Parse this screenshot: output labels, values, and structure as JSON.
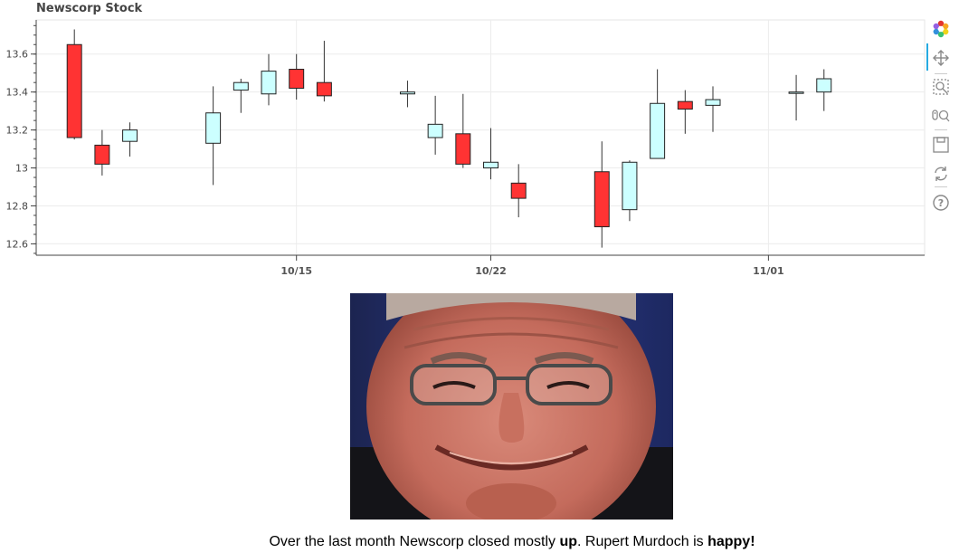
{
  "chart_data": {
    "type": "candlestick",
    "title": "Newscorp Stock",
    "ylim": [
      12.54,
      13.78
    ],
    "yticks": [
      12.6,
      12.8,
      13,
      13.2,
      13.4,
      13.6
    ],
    "ytick_labels": [
      "12.6",
      "12.8",
      "13",
      "13.2",
      "13.4",
      "13.6"
    ],
    "xlim": [
      "2018-10-05T15:00",
      "2018-11-06T15:00"
    ],
    "xticks": [
      "2018-10-15",
      "2018-10-22",
      "2018-11-01"
    ],
    "xtick_labels": [
      "10/15",
      "10/22",
      "11/01"
    ],
    "increasing_color": "#CCFFFF",
    "decreasing_color": "#FF3333",
    "candles": [
      {
        "date": "2018-10-07",
        "open": 13.65,
        "high": 13.73,
        "low": 13.15,
        "close": 13.16
      },
      {
        "date": "2018-10-08",
        "open": 13.12,
        "high": 13.2,
        "low": 12.96,
        "close": 13.02
      },
      {
        "date": "2018-10-09",
        "open": 13.14,
        "high": 13.24,
        "low": 13.06,
        "close": 13.2
      },
      {
        "date": "2018-10-12",
        "open": 13.13,
        "high": 13.43,
        "low": 12.91,
        "close": 13.29
      },
      {
        "date": "2018-10-13",
        "open": 13.41,
        "high": 13.47,
        "low": 13.29,
        "close": 13.45
      },
      {
        "date": "2018-10-14",
        "open": 13.39,
        "high": 13.6,
        "low": 13.33,
        "close": 13.51
      },
      {
        "date": "2018-10-15",
        "open": 13.52,
        "high": 13.6,
        "low": 13.36,
        "close": 13.42
      },
      {
        "date": "2018-10-16",
        "open": 13.45,
        "high": 13.67,
        "low": 13.35,
        "close": 13.38
      },
      {
        "date": "2018-10-19",
        "open": 13.39,
        "high": 13.46,
        "low": 13.32,
        "close": 13.4
      },
      {
        "date": "2018-10-20",
        "open": 13.16,
        "high": 13.38,
        "low": 13.07,
        "close": 13.23
      },
      {
        "date": "2018-10-21",
        "open": 13.18,
        "high": 13.39,
        "low": 13.0,
        "close": 13.02
      },
      {
        "date": "2018-10-22",
        "open": 13.0,
        "high": 13.21,
        "low": 12.94,
        "close": 13.03
      },
      {
        "date": "2018-10-23",
        "open": 12.92,
        "high": 13.02,
        "low": 12.74,
        "close": 12.84
      },
      {
        "date": "2018-10-26",
        "open": 12.98,
        "high": 13.14,
        "low": 12.58,
        "close": 12.69
      },
      {
        "date": "2018-10-27",
        "open": 12.78,
        "high": 13.04,
        "low": 12.72,
        "close": 13.03
      },
      {
        "date": "2018-10-28",
        "open": 13.05,
        "high": 13.52,
        "low": 13.05,
        "close": 13.34
      },
      {
        "date": "2018-10-29",
        "open": 13.35,
        "high": 13.41,
        "low": 13.18,
        "close": 13.31
      },
      {
        "date": "2018-10-30",
        "open": 13.33,
        "high": 13.43,
        "low": 13.19,
        "close": 13.36
      },
      {
        "date": "2018-11-02",
        "open": 13.4,
        "high": 13.49,
        "low": 13.25,
        "close": 13.4
      },
      {
        "date": "2018-11-03",
        "open": 13.4,
        "high": 13.52,
        "low": 13.3,
        "close": 13.47
      }
    ]
  },
  "toolbar": {
    "tools": [
      "bokeh-logo-icon",
      "pan-icon",
      "box-zoom-icon",
      "wheel-zoom-icon",
      "save-icon",
      "reset-icon",
      "help-icon"
    ],
    "active_tool": "pan-icon",
    "accent_color": "#26AAE1"
  },
  "caption": {
    "part1": "Over the last month Newscorp closed mostly ",
    "bold1": "up",
    "part2": ". Rupert Murdoch is ",
    "bold2": "happy!"
  },
  "photo": {
    "icon": "smiling-man-portrait"
  }
}
